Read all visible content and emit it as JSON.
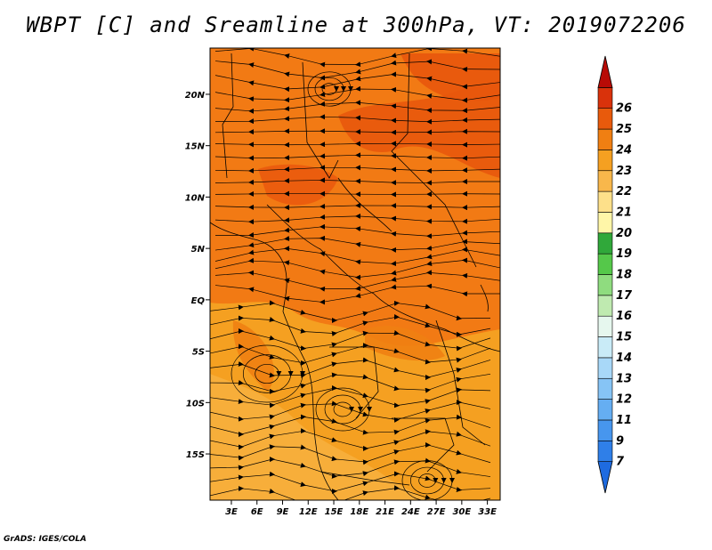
{
  "title": "WBPT [C] and Sreamline at 300hPa, VT: 2019072206",
  "footer": "GrADS: IGES/COLA",
  "map": {
    "lat_labels": [
      "20N",
      "15N",
      "10N",
      "5N",
      "EQ",
      "5S",
      "10S",
      "15S"
    ],
    "lat_values": [
      20,
      15,
      10,
      5,
      0,
      -5,
      -10,
      -15
    ],
    "lon_labels": [
      "3E",
      "6E",
      "9E",
      "12E",
      "15E",
      "18E",
      "21E",
      "24E",
      "27E",
      "30E",
      "33E"
    ],
    "lon_values": [
      3,
      6,
      9,
      12,
      15,
      18,
      21,
      24,
      27,
      30,
      33
    ],
    "lon_range": [
      0.5,
      34.5
    ],
    "lat_range": [
      -19.5,
      24.5
    ]
  },
  "colorbar": {
    "labels": [
      "7",
      "9",
      "11",
      "12",
      "13",
      "14",
      "15",
      "16",
      "17",
      "18",
      "19",
      "20",
      "21",
      "22",
      "23",
      "24",
      "25",
      "26"
    ],
    "colors": [
      "#1e6be0",
      "#2f7fe8",
      "#4796ee",
      "#65aef2",
      "#86c4f5",
      "#a8d8f8",
      "#c9ebf7",
      "#e6f7ee",
      "#bfeab0",
      "#8fdc7f",
      "#55c84a",
      "#30a83a",
      "#fff6a8",
      "#fde08a",
      "#f8b74b",
      "#f5a021",
      "#f07f12",
      "#e85a0c",
      "#d9320b",
      "#b80b06"
    ]
  }
}
